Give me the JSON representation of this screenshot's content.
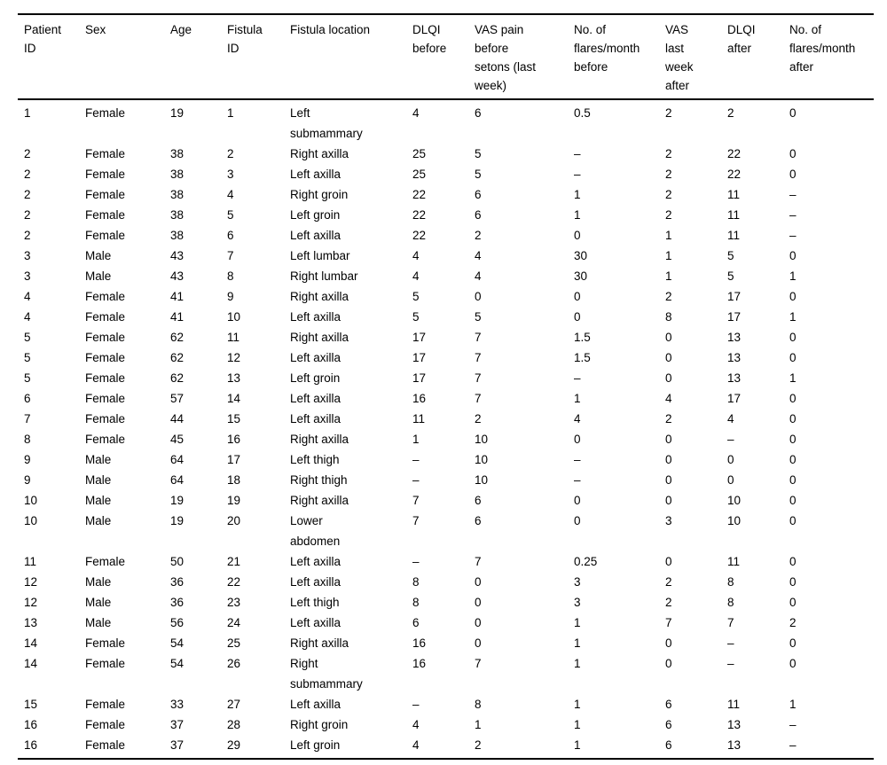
{
  "table": {
    "description": "Patient fistula outcomes table",
    "missing_value_symbol": "–",
    "colors": {
      "text": "#000000",
      "rule": "#000000",
      "background": "#ffffff"
    },
    "headers": [
      "Patient\nID",
      "Sex",
      "Age",
      "Fistula\nID",
      "Fistula location",
      "DLQI\nbefore",
      "VAS pain\nbefore\nsetons (last\nweek)",
      "No. of\nflares/month\nbefore",
      "VAS\nlast\nweek\nafter",
      "DLQI\nafter",
      "No. of\nflares/month\nafter"
    ],
    "rows": [
      [
        "1",
        "Female",
        "19",
        "1",
        "Left\nsubmammary",
        "4",
        "6",
        "0.5",
        "2",
        "2",
        "0"
      ],
      [
        "2",
        "Female",
        "38",
        "2",
        "Right axilla",
        "25",
        "5",
        "–",
        "2",
        "22",
        "0"
      ],
      [
        "2",
        "Female",
        "38",
        "3",
        "Left axilla",
        "25",
        "5",
        "–",
        "2",
        "22",
        "0"
      ],
      [
        "2",
        "Female",
        "38",
        "4",
        "Right groin",
        "22",
        "6",
        "1",
        "2",
        "11",
        "–"
      ],
      [
        "2",
        "Female",
        "38",
        "5",
        "Left groin",
        "22",
        "6",
        "1",
        "2",
        "11",
        "–"
      ],
      [
        "2",
        "Female",
        "38",
        "6",
        "Left axilla",
        "22",
        "2",
        "0",
        "1",
        "11",
        "–"
      ],
      [
        "3",
        "Male",
        "43",
        "7",
        "Left lumbar",
        "4",
        "4",
        "30",
        "1",
        "5",
        "0"
      ],
      [
        "3",
        "Male",
        "43",
        "8",
        "Right lumbar",
        "4",
        "4",
        "30",
        "1",
        "5",
        "1"
      ],
      [
        "4",
        "Female",
        "41",
        "9",
        "Right axilla",
        "5",
        "0",
        "0",
        "2",
        "17",
        "0"
      ],
      [
        "4",
        "Female",
        "41",
        "10",
        "Left axilla",
        "5",
        "5",
        "0",
        "8",
        "17",
        "1"
      ],
      [
        "5",
        "Female",
        "62",
        "11",
        "Right axilla",
        "17",
        "7",
        "1.5",
        "0",
        "13",
        "0"
      ],
      [
        "5",
        "Female",
        "62",
        "12",
        "Left axilla",
        "17",
        "7",
        "1.5",
        "0",
        "13",
        "0"
      ],
      [
        "5",
        "Female",
        "62",
        "13",
        "Left groin",
        "17",
        "7",
        "–",
        "0",
        "13",
        "1"
      ],
      [
        "6",
        "Female",
        "57",
        "14",
        "Left axilla",
        "16",
        "7",
        "1",
        "4",
        "17",
        "0"
      ],
      [
        "7",
        "Female",
        "44",
        "15",
        "Left axilla",
        "11",
        "2",
        "4",
        "2",
        "4",
        "0"
      ],
      [
        "8",
        "Female",
        "45",
        "16",
        "Right axilla",
        "1",
        "10",
        "0",
        "0",
        "–",
        "0"
      ],
      [
        "9",
        "Male",
        "64",
        "17",
        "Left thigh",
        "–",
        "10",
        "–",
        "0",
        "0",
        "0"
      ],
      [
        "9",
        "Male",
        "64",
        "18",
        "Right thigh",
        "–",
        "10",
        "–",
        "0",
        "0",
        "0"
      ],
      [
        "10",
        "Male",
        "19",
        "19",
        "Right axilla",
        "7",
        "6",
        "0",
        "0",
        "10",
        "0"
      ],
      [
        "10",
        "Male",
        "19",
        "20",
        "Lower\nabdomen",
        "7",
        "6",
        "0",
        "3",
        "10",
        "0"
      ],
      [
        "11",
        "Female",
        "50",
        "21",
        "Left axilla",
        "–",
        "7",
        "0.25",
        "0",
        "11",
        "0"
      ],
      [
        "12",
        "Male",
        "36",
        "22",
        "Left axilla",
        "8",
        "0",
        "3",
        "2",
        "8",
        "0"
      ],
      [
        "12",
        "Male",
        "36",
        "23",
        "Left thigh",
        "8",
        "0",
        "3",
        "2",
        "8",
        "0"
      ],
      [
        "13",
        "Male",
        "56",
        "24",
        "Left axilla",
        "6",
        "0",
        "1",
        "7",
        "7",
        "2"
      ],
      [
        "14",
        "Female",
        "54",
        "25",
        "Right axilla",
        "16",
        "0",
        "1",
        "0",
        "–",
        "0"
      ],
      [
        "14",
        "Female",
        "54",
        "26",
        "Right\nsubmammary",
        "16",
        "7",
        "1",
        "0",
        "–",
        "0"
      ],
      [
        "15",
        "Female",
        "33",
        "27",
        "Left axilla",
        "–",
        "8",
        "1",
        "6",
        "11",
        "1"
      ],
      [
        "16",
        "Female",
        "37",
        "28",
        "Right groin",
        "4",
        "1",
        "1",
        "6",
        "13",
        "–"
      ],
      [
        "16",
        "Female",
        "37",
        "29",
        "Left groin",
        "4",
        "2",
        "1",
        "6",
        "13",
        "–"
      ]
    ]
  }
}
